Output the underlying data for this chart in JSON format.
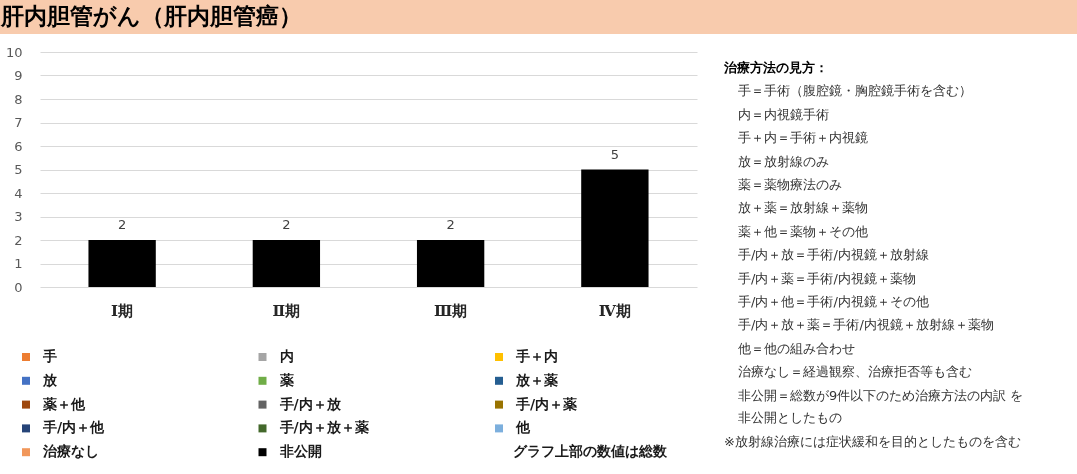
{
  "chart_data": [
    {
      "type": "bar",
      "title": "肝内胆管がん（肝内胆管癌）",
      "categories": [
        "Ⅰ期",
        "Ⅱ期",
        "Ⅲ期",
        "Ⅳ期"
      ],
      "stacked": true,
      "series": [
        {
          "name": "手",
          "color": "#ed7d31",
          "values": [
            null,
            null,
            null,
            null
          ]
        },
        {
          "name": "内",
          "color": "#a5a5a5",
          "values": [
            null,
            null,
            null,
            null
          ]
        },
        {
          "name": "手＋内",
          "color": "#ffc000",
          "values": [
            null,
            null,
            null,
            null
          ]
        },
        {
          "name": "放",
          "color": "#4472c4",
          "values": [
            null,
            null,
            null,
            null
          ]
        },
        {
          "name": "薬",
          "color": "#70ad47",
          "values": [
            null,
            null,
            null,
            null
          ]
        },
        {
          "name": "放＋薬",
          "color": "#255e91",
          "values": [
            null,
            null,
            null,
            null
          ]
        },
        {
          "name": "薬＋他",
          "color": "#9e480e",
          "values": [
            null,
            null,
            null,
            null
          ]
        },
        {
          "name": "手/内＋放",
          "color": "#636363",
          "values": [
            null,
            null,
            null,
            null
          ]
        },
        {
          "name": "手/内＋薬",
          "color": "#997300",
          "values": [
            null,
            null,
            null,
            null
          ]
        },
        {
          "name": "手/内＋他",
          "color": "#264478",
          "values": [
            null,
            null,
            null,
            null
          ]
        },
        {
          "name": "手/内＋放＋薬",
          "color": "#43682b",
          "values": [
            null,
            null,
            null,
            null
          ]
        },
        {
          "name": "他",
          "color": "#7cafdd",
          "values": [
            null,
            null,
            null,
            null
          ]
        },
        {
          "name": "治療なし",
          "color": "#f1975a",
          "values": [
            null,
            null,
            null,
            null
          ]
        },
        {
          "name": "非公開",
          "color": "#000000",
          "values": [
            2,
            2,
            2,
            5
          ]
        }
      ],
      "totals": [
        "2",
        "2",
        "2",
        "5"
      ],
      "ylim": [
        0,
        10
      ],
      "yticks": [
        0,
        1,
        2,
        3,
        4,
        5,
        6,
        7,
        8,
        9,
        10
      ],
      "grid": "y",
      "legend": "bottom",
      "annotations": [
        "グラフ上部の数値は総数"
      ]
    },
    {
      "type": "other",
      "title": "治療方法の見方：",
      "annotations": [
        "手＝手術（腹腔鏡・胸腔鏡手術を含む）",
        "内＝内視鏡手術",
        "手＋内＝手術＋内視鏡",
        "放＝放射線のみ",
        "薬＝薬物療法のみ",
        "放＋薬＝放射線＋薬物",
        "薬＋他＝薬物＋その他",
        "手/内＋放＝手術/内視鏡＋放射線",
        "手/内＋薬＝手術/内視鏡＋薬物",
        "手/内＋他＝手術/内視鏡＋その他",
        "手/内＋放＋薬＝手術/内視鏡＋放射線＋薬物",
        "他＝他の組み合わせ",
        "治療なし＝経過観察、治療拒否等も含む",
        "非公開＝総数が9件以下のため治療方法の内訳 を非公開としたもの",
        "※放射線治療には症状緩和を目的としたものを含む"
      ]
    }
  ]
}
